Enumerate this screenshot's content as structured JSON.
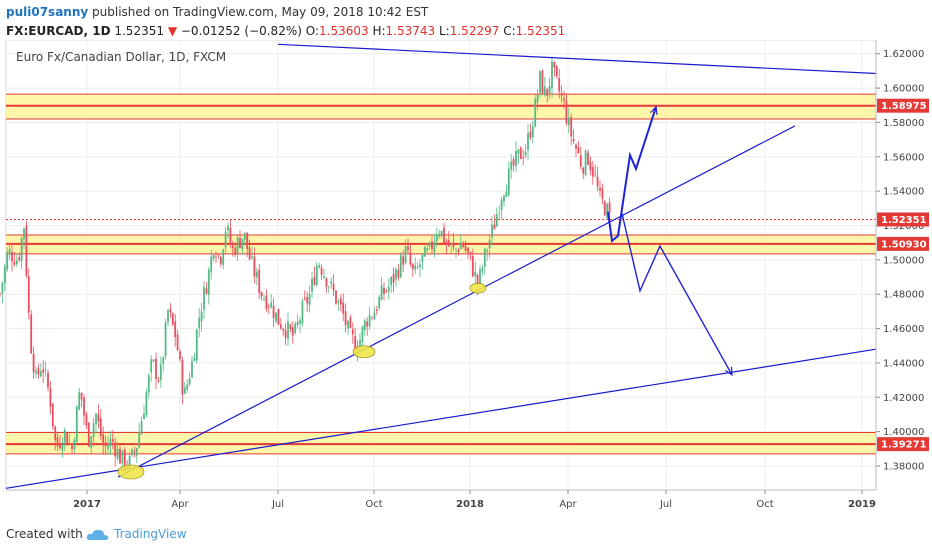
{
  "header": {
    "user": "puli07sanny",
    "published_text": "published on TradingView.com, May 09, 2018 10:42 EST",
    "symbol": "FX:EURCAD, 1D",
    "last": "1.52351",
    "arrow": "▼",
    "change": "−0.01252 (−0.82%)",
    "open_label": "O:",
    "open": "1.53603",
    "high_label": "H:",
    "high": "1.53743",
    "low_label": "L:",
    "low": "1.52297",
    "close_label": "C:",
    "close": "1.52351"
  },
  "footer": {
    "created_with": "Created with",
    "brand": "TradingView"
  },
  "chart_data": {
    "type": "candlestick",
    "title": "Euro Fx/Canadian Dollar, 1D, FXCM",
    "ylim": [
      1.366,
      1.628
    ],
    "y_ticks": [
      "1.62000",
      "1.60000",
      "1.58000",
      "1.56000",
      "1.54000",
      "1.52000",
      "1.50000",
      "1.48000",
      "1.46000",
      "1.44000",
      "1.42000",
      "1.40000",
      "1.38000"
    ],
    "x_ticks": [
      {
        "label": "2017",
        "bold": true
      },
      {
        "label": "Apr",
        "bold": false
      },
      {
        "label": "Jul",
        "bold": false
      },
      {
        "label": "Oct",
        "bold": false
      },
      {
        "label": "2018",
        "bold": true
      },
      {
        "label": "Apr",
        "bold": false
      },
      {
        "label": "Jul",
        "bold": false
      },
      {
        "label": "Oct",
        "bold": false
      },
      {
        "label": "2019",
        "bold": true
      }
    ],
    "price_tags": [
      {
        "label": "1.58975",
        "value": 1.58975
      },
      {
        "label": "1.52351",
        "value": 1.52351
      },
      {
        "label": "1.50930",
        "value": 1.5093
      },
      {
        "label": "1.39271",
        "value": 1.39271
      }
    ],
    "zones": [
      {
        "from": 1.582,
        "to": 1.5965,
        "line": 1.58975
      },
      {
        "from": 1.5035,
        "to": 1.5145,
        "line": 1.5093
      },
      {
        "from": 1.387,
        "to": 1.3995,
        "line": 1.39271
      }
    ],
    "last_price": 1.52351,
    "price_path": [
      [
        0,
        1.48
      ],
      [
        8,
        1.505
      ],
      [
        18,
        1.5
      ],
      [
        24,
        1.52
      ],
      [
        30,
        1.455
      ],
      [
        36,
        1.43
      ],
      [
        42,
        1.44
      ],
      [
        50,
        1.42
      ],
      [
        56,
        1.39
      ],
      [
        64,
        1.4
      ],
      [
        72,
        1.39
      ],
      [
        80,
        1.425
      ],
      [
        88,
        1.395
      ],
      [
        96,
        1.41
      ],
      [
        104,
        1.39
      ],
      [
        112,
        1.395
      ],
      [
        120,
        1.385
      ],
      [
        128,
        1.38
      ],
      [
        136,
        1.39
      ],
      [
        144,
        1.415
      ],
      [
        152,
        1.44
      ],
      [
        160,
        1.43
      ],
      [
        168,
        1.47
      ],
      [
        176,
        1.455
      ],
      [
        184,
        1.42
      ],
      [
        192,
        1.44
      ],
      [
        200,
        1.47
      ],
      [
        208,
        1.49
      ],
      [
        214,
        1.51
      ],
      [
        220,
        1.5
      ],
      [
        226,
        1.52
      ],
      [
        232,
        1.505
      ],
      [
        238,
        1.51
      ],
      [
        244,
        1.515
      ],
      [
        250,
        1.5
      ],
      [
        256,
        1.49
      ],
      [
        262,
        1.48
      ],
      [
        270,
        1.475
      ],
      [
        278,
        1.465
      ],
      [
        286,
        1.46
      ],
      [
        294,
        1.455
      ],
      [
        302,
        1.47
      ],
      [
        310,
        1.48
      ],
      [
        318,
        1.5
      ],
      [
        326,
        1.49
      ],
      [
        334,
        1.48
      ],
      [
        342,
        1.47
      ],
      [
        350,
        1.455
      ],
      [
        358,
        1.45
      ],
      [
        366,
        1.465
      ],
      [
        374,
        1.47
      ],
      [
        382,
        1.48
      ],
      [
        390,
        1.485
      ],
      [
        398,
        1.495
      ],
      [
        406,
        1.505
      ],
      [
        414,
        1.49
      ],
      [
        422,
        1.5
      ],
      [
        430,
        1.505
      ],
      [
        438,
        1.52
      ],
      [
        446,
        1.51
      ],
      [
        454,
        1.505
      ],
      [
        462,
        1.51
      ],
      [
        470,
        1.5
      ],
      [
        478,
        1.485
      ],
      [
        486,
        1.505
      ],
      [
        494,
        1.52
      ],
      [
        502,
        1.54
      ],
      [
        510,
        1.55
      ],
      [
        518,
        1.56
      ],
      [
        526,
        1.565
      ],
      [
        534,
        1.585
      ],
      [
        540,
        1.605
      ],
      [
        546,
        1.595
      ],
      [
        552,
        1.61
      ],
      [
        558,
        1.6
      ],
      [
        564,
        1.59
      ],
      [
        570,
        1.575
      ],
      [
        576,
        1.565
      ],
      [
        582,
        1.555
      ],
      [
        588,
        1.56
      ],
      [
        594,
        1.55
      ],
      [
        600,
        1.535
      ],
      [
        606,
        1.53
      ],
      [
        610,
        1.52351
      ]
    ],
    "trend_lines": [
      {
        "name": "upper-resistance",
        "x1": 278,
        "y1": 1.6255,
        "x2": 876,
        "y2": 1.6085
      },
      {
        "name": "short-term-support",
        "x1": 118,
        "y1": 1.3735,
        "x2": 795,
        "y2": 1.578
      },
      {
        "name": "long-term-support",
        "x1": 6,
        "y1": 1.367,
        "x2": 876,
        "y2": 1.448
      }
    ],
    "projections": [
      {
        "name": "bullish-path",
        "points": [
          [
            608,
            1.528
          ],
          [
            612,
            1.511
          ],
          [
            618,
            1.514
          ],
          [
            630,
            1.561
          ],
          [
            636,
            1.553
          ],
          [
            656,
            1.589
          ]
        ],
        "width": 2
      },
      {
        "name": "bearish-path",
        "points": [
          [
            622,
            1.527
          ],
          [
            640,
            1.482
          ],
          [
            660,
            1.508
          ],
          [
            732,
            1.433
          ]
        ],
        "width": 1.4
      }
    ],
    "ellipses": [
      {
        "x": 131,
        "y": 1.3765,
        "rx": 13,
        "ry": 7
      },
      {
        "x": 364,
        "y": 1.4465,
        "rx": 11,
        "ry": 6
      },
      {
        "x": 478,
        "y": 1.4835,
        "rx": 8,
        "ry": 5
      }
    ],
    "colors": {
      "zone_fill": "#fff59d",
      "zone_line": "#e53935",
      "trend": "#1a1acc",
      "projection": "#1e22d8",
      "candle_up": "#53b987",
      "candle_down": "#eb4d5c",
      "tag": "#e53935",
      "ellipse": "#f0e64a"
    }
  }
}
